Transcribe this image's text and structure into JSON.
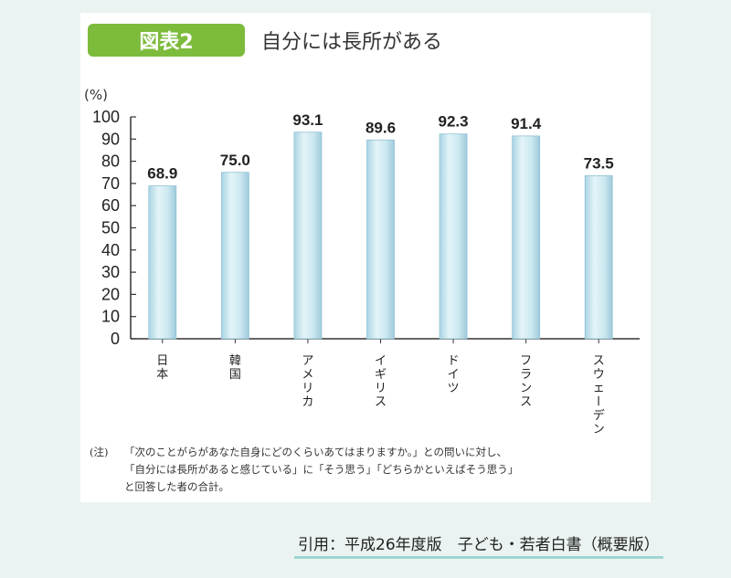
{
  "badge": "図表2",
  "title": "自分には長所がある",
  "unit_label": "(%)",
  "chart_data": {
    "type": "bar",
    "title": "自分には長所がある",
    "ylabel": "(%)",
    "categories": [
      "日本",
      "韓国",
      "アメリカ",
      "イギリス",
      "ドイツ",
      "フランス",
      "スウェーデン"
    ],
    "values": [
      68.9,
      75.0,
      93.1,
      89.6,
      92.3,
      91.4,
      73.5
    ],
    "value_labels": [
      "68.9",
      "75.0",
      "93.1",
      "89.6",
      "92.3",
      "91.4",
      "73.5"
    ],
    "ylim": [
      0,
      100
    ],
    "yticks": [
      0,
      10,
      20,
      30,
      40,
      50,
      60,
      70,
      80,
      90,
      100
    ],
    "grid": false,
    "bar_color": "#cde9f1"
  },
  "note": {
    "lead": "(注)",
    "line1": "「次のことがらがあなた自身にどのくらいあてはまりますか。」との問いに対し、",
    "line2": "「自分には長所があると感じている」に「そう思う」「どちらかといえばそう思う」",
    "line3": "と回答した者の合計。"
  },
  "citation": "引用：平成26年度版　子ども・若者白書（概要版）"
}
